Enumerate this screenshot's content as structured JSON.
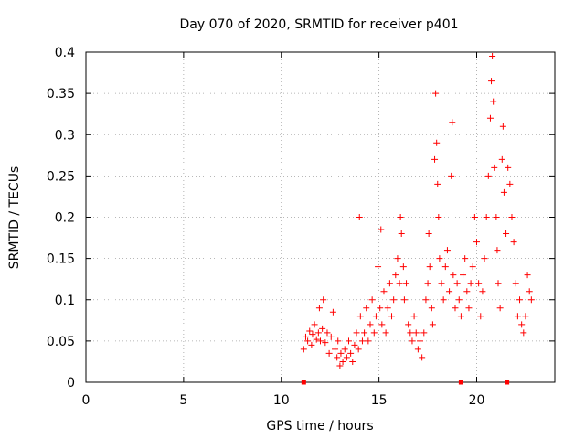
{
  "chart_data": {
    "type": "scatter",
    "title": "Day 070 of 2020, SRMTID for receiver p401",
    "xlabel": "GPS time / hours",
    "ylabel": "SRMTID / TECUs",
    "xlim": [
      0,
      24
    ],
    "ylim": [
      0,
      0.4
    ],
    "x_ticks": [
      0,
      5,
      10,
      15,
      20
    ],
    "x_tick_labels": [
      "0",
      "5",
      "10",
      "15",
      "20"
    ],
    "y_ticks": [
      0,
      0.05,
      0.1,
      0.15,
      0.2,
      0.25,
      0.3,
      0.35,
      0.4
    ],
    "y_tick_labels": [
      "0",
      "0.05",
      "0.1",
      "0.15",
      "0.2",
      "0.25",
      "0.3",
      "0.35",
      "0.4"
    ],
    "grid": true,
    "marker": "plus",
    "colors": {
      "series": "#ff0000",
      "grid": "#a0a0a0",
      "axis": "#000000"
    },
    "series": [
      {
        "name": "SRMTID",
        "points": [
          [
            11.15,
            0.04
          ],
          [
            11.25,
            0.055
          ],
          [
            11.35,
            0.05
          ],
          [
            11.45,
            0.062
          ],
          [
            11.55,
            0.045
          ],
          [
            11.6,
            0.058
          ],
          [
            11.7,
            0.07
          ],
          [
            11.8,
            0.052
          ],
          [
            11.9,
            0.06
          ],
          [
            11.95,
            0.09
          ],
          [
            12.0,
            0.05
          ],
          [
            12.1,
            0.065
          ],
          [
            12.15,
            0.1
          ],
          [
            12.25,
            0.048
          ],
          [
            12.35,
            0.06
          ],
          [
            12.45,
            0.035
          ],
          [
            12.55,
            0.055
          ],
          [
            12.65,
            0.085
          ],
          [
            12.75,
            0.04
          ],
          [
            12.85,
            0.03
          ],
          [
            12.9,
            0.05
          ],
          [
            13.0,
            0.02
          ],
          [
            13.05,
            0.035
          ],
          [
            13.15,
            0.025
          ],
          [
            13.25,
            0.04
          ],
          [
            13.35,
            0.03
          ],
          [
            13.45,
            0.05
          ],
          [
            13.55,
            0.035
          ],
          [
            13.65,
            0.025
          ],
          [
            13.75,
            0.045
          ],
          [
            13.85,
            0.06
          ],
          [
            13.95,
            0.04
          ],
          [
            14.0,
            0.2
          ],
          [
            14.05,
            0.08
          ],
          [
            14.15,
            0.05
          ],
          [
            14.25,
            0.06
          ],
          [
            14.35,
            0.09
          ],
          [
            14.45,
            0.05
          ],
          [
            14.55,
            0.07
          ],
          [
            14.65,
            0.1
          ],
          [
            14.75,
            0.06
          ],
          [
            14.85,
            0.08
          ],
          [
            14.95,
            0.14
          ],
          [
            15.05,
            0.09
          ],
          [
            15.1,
            0.185
          ],
          [
            15.15,
            0.07
          ],
          [
            15.25,
            0.11
          ],
          [
            15.35,
            0.06
          ],
          [
            15.45,
            0.09
          ],
          [
            15.55,
            0.12
          ],
          [
            15.65,
            0.08
          ],
          [
            15.75,
            0.1
          ],
          [
            15.85,
            0.13
          ],
          [
            15.95,
            0.15
          ],
          [
            16.05,
            0.12
          ],
          [
            16.1,
            0.2
          ],
          [
            16.15,
            0.18
          ],
          [
            16.25,
            0.14
          ],
          [
            16.3,
            0.1
          ],
          [
            16.4,
            0.12
          ],
          [
            16.5,
            0.07
          ],
          [
            16.6,
            0.06
          ],
          [
            16.7,
            0.05
          ],
          [
            16.8,
            0.08
          ],
          [
            16.9,
            0.06
          ],
          [
            17.0,
            0.04
          ],
          [
            17.1,
            0.05
          ],
          [
            17.2,
            0.03
          ],
          [
            17.3,
            0.06
          ],
          [
            17.4,
            0.1
          ],
          [
            17.5,
            0.12
          ],
          [
            17.55,
            0.18
          ],
          [
            17.6,
            0.14
          ],
          [
            17.7,
            0.09
          ],
          [
            17.75,
            0.07
          ],
          [
            17.85,
            0.27
          ],
          [
            17.9,
            0.35
          ],
          [
            17.95,
            0.29
          ],
          [
            18.0,
            0.24
          ],
          [
            18.05,
            0.2
          ],
          [
            18.1,
            0.15
          ],
          [
            18.2,
            0.12
          ],
          [
            18.3,
            0.1
          ],
          [
            18.4,
            0.14
          ],
          [
            18.5,
            0.16
          ],
          [
            18.6,
            0.11
          ],
          [
            18.7,
            0.25
          ],
          [
            18.75,
            0.315
          ],
          [
            18.8,
            0.13
          ],
          [
            18.9,
            0.09
          ],
          [
            19.0,
            0.12
          ],
          [
            19.1,
            0.1
          ],
          [
            19.2,
            0.08
          ],
          [
            19.3,
            0.13
          ],
          [
            19.4,
            0.15
          ],
          [
            19.5,
            0.11
          ],
          [
            19.6,
            0.09
          ],
          [
            19.7,
            0.12
          ],
          [
            19.8,
            0.14
          ],
          [
            19.9,
            0.2
          ],
          [
            20.0,
            0.17
          ],
          [
            20.1,
            0.12
          ],
          [
            20.2,
            0.08
          ],
          [
            20.3,
            0.11
          ],
          [
            20.4,
            0.15
          ],
          [
            20.5,
            0.2
          ],
          [
            20.6,
            0.25
          ],
          [
            20.7,
            0.32
          ],
          [
            20.75,
            0.365
          ],
          [
            20.8,
            0.395
          ],
          [
            20.85,
            0.34
          ],
          [
            20.9,
            0.26
          ],
          [
            21.0,
            0.2
          ],
          [
            21.05,
            0.16
          ],
          [
            21.1,
            0.12
          ],
          [
            21.2,
            0.09
          ],
          [
            21.3,
            0.27
          ],
          [
            21.35,
            0.31
          ],
          [
            21.4,
            0.23
          ],
          [
            21.5,
            0.18
          ],
          [
            21.6,
            0.26
          ],
          [
            21.7,
            0.24
          ],
          [
            21.8,
            0.2
          ],
          [
            21.9,
            0.17
          ],
          [
            22.0,
            0.12
          ],
          [
            22.1,
            0.08
          ],
          [
            22.2,
            0.1
          ],
          [
            22.3,
            0.07
          ],
          [
            22.4,
            0.06
          ],
          [
            22.5,
            0.08
          ],
          [
            22.6,
            0.13
          ],
          [
            22.7,
            0.11
          ],
          [
            22.8,
            0.1
          ]
        ]
      }
    ],
    "zero_markers": [
      11.15,
      19.2,
      21.55
    ]
  }
}
